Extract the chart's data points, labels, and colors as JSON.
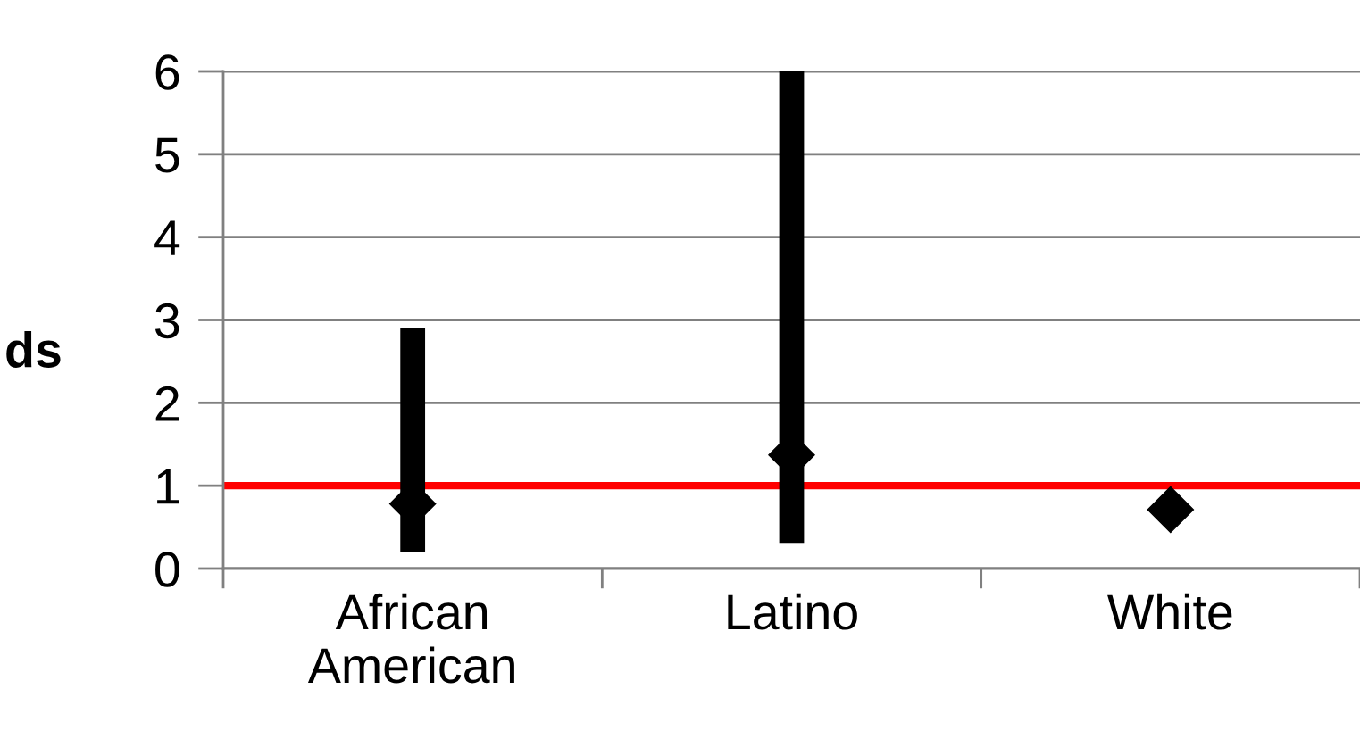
{
  "chart_data": {
    "type": "scatter",
    "ylabel": "ds",
    "categories": [
      "African\nAmerican",
      "Latino",
      "White"
    ],
    "series": [
      {
        "color": "#000000",
        "values": [
          0.78,
          1.37,
          0.71
        ],
        "errors": [
          [
            0.2,
            2.9
          ],
          [
            0.31,
            6.0
          ],
          null
        ]
      }
    ],
    "ylim": [
      0,
      6
    ],
    "yticks": [
      0,
      1,
      2,
      3,
      4,
      5,
      6
    ],
    "grid": "y",
    "marker": "diamond",
    "ref_lines": [
      {
        "axis": "y",
        "value": 1,
        "color": "#ff0000",
        "line_style": "solid"
      }
    ]
  }
}
